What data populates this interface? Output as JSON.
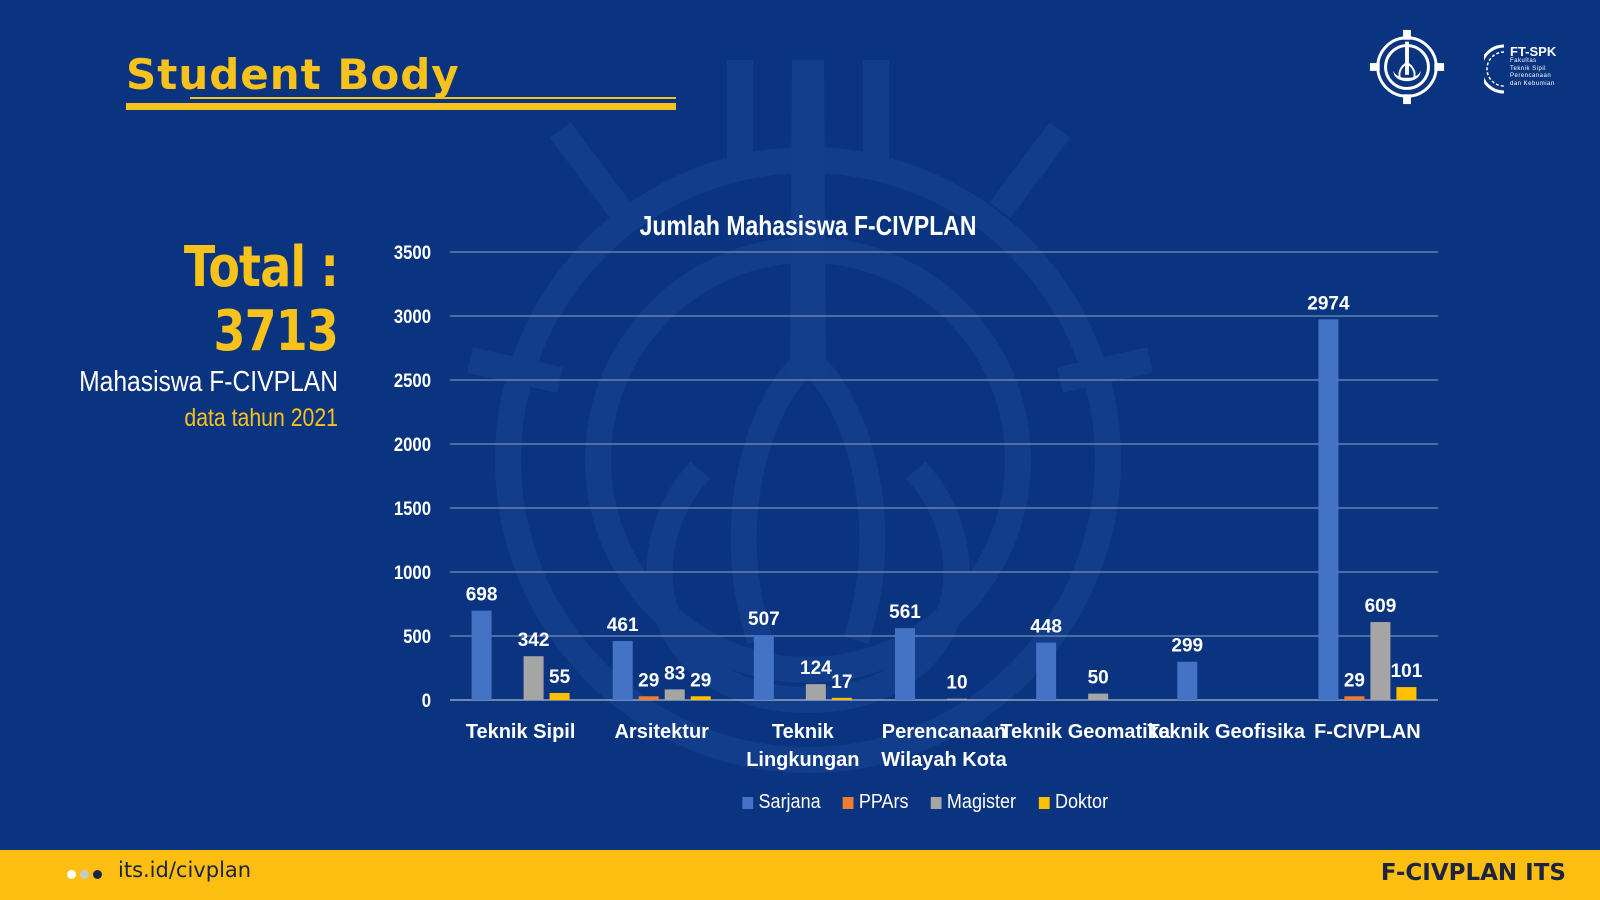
{
  "slide": {
    "title": "Student Body",
    "total_label": "Total : 3713",
    "total_sub": "Mahasiswa F-CIVPLAN",
    "total_year": "data tahun 2021"
  },
  "logos": {
    "its": "its-seal-icon",
    "ftspk_title": "FT-SPK",
    "ftspk_lines": [
      "Fakultas",
      "Teknik Sipil",
      "Perencanaan",
      "dan Kebumian"
    ]
  },
  "footer": {
    "url": "its.id/civplan",
    "brand": "F-CIVPLAN ITS",
    "background": "#fbbe11"
  },
  "colors": {
    "background": "#0b3480",
    "accent": "#f7c21b"
  },
  "chart_data": {
    "type": "bar",
    "title": "Jumlah Mahasiswa F-CIVPLAN",
    "xlabel": "",
    "ylabel": "",
    "ylim": [
      0,
      3500
    ],
    "yticks": [
      0,
      500,
      1000,
      1500,
      2000,
      2500,
      3000,
      3500
    ],
    "grid": true,
    "legend_position": "bottom",
    "categories": [
      [
        "Teknik Sipil"
      ],
      [
        "Arsitektur"
      ],
      [
        "Teknik",
        "Lingkungan"
      ],
      [
        "Perencanaan",
        "Wilayah Kota"
      ],
      [
        "Teknik Geomatika"
      ],
      [
        "Teknik Geofisika"
      ],
      [
        "F-CIVPLAN"
      ]
    ],
    "series": [
      {
        "name": "Sarjana",
        "color": "#4472c4",
        "values": [
          698,
          461,
          507,
          561,
          448,
          299,
          2974
        ]
      },
      {
        "name": "PPArs",
        "color": "#ed7d31",
        "values": [
          null,
          29,
          null,
          null,
          null,
          null,
          29
        ]
      },
      {
        "name": "Magister",
        "color": "#a5a5a5",
        "values": [
          342,
          83,
          124,
          10,
          50,
          null,
          609
        ]
      },
      {
        "name": "Doktor",
        "color": "#ffc000",
        "values": [
          55,
          29,
          17,
          null,
          null,
          null,
          101
        ]
      }
    ]
  }
}
